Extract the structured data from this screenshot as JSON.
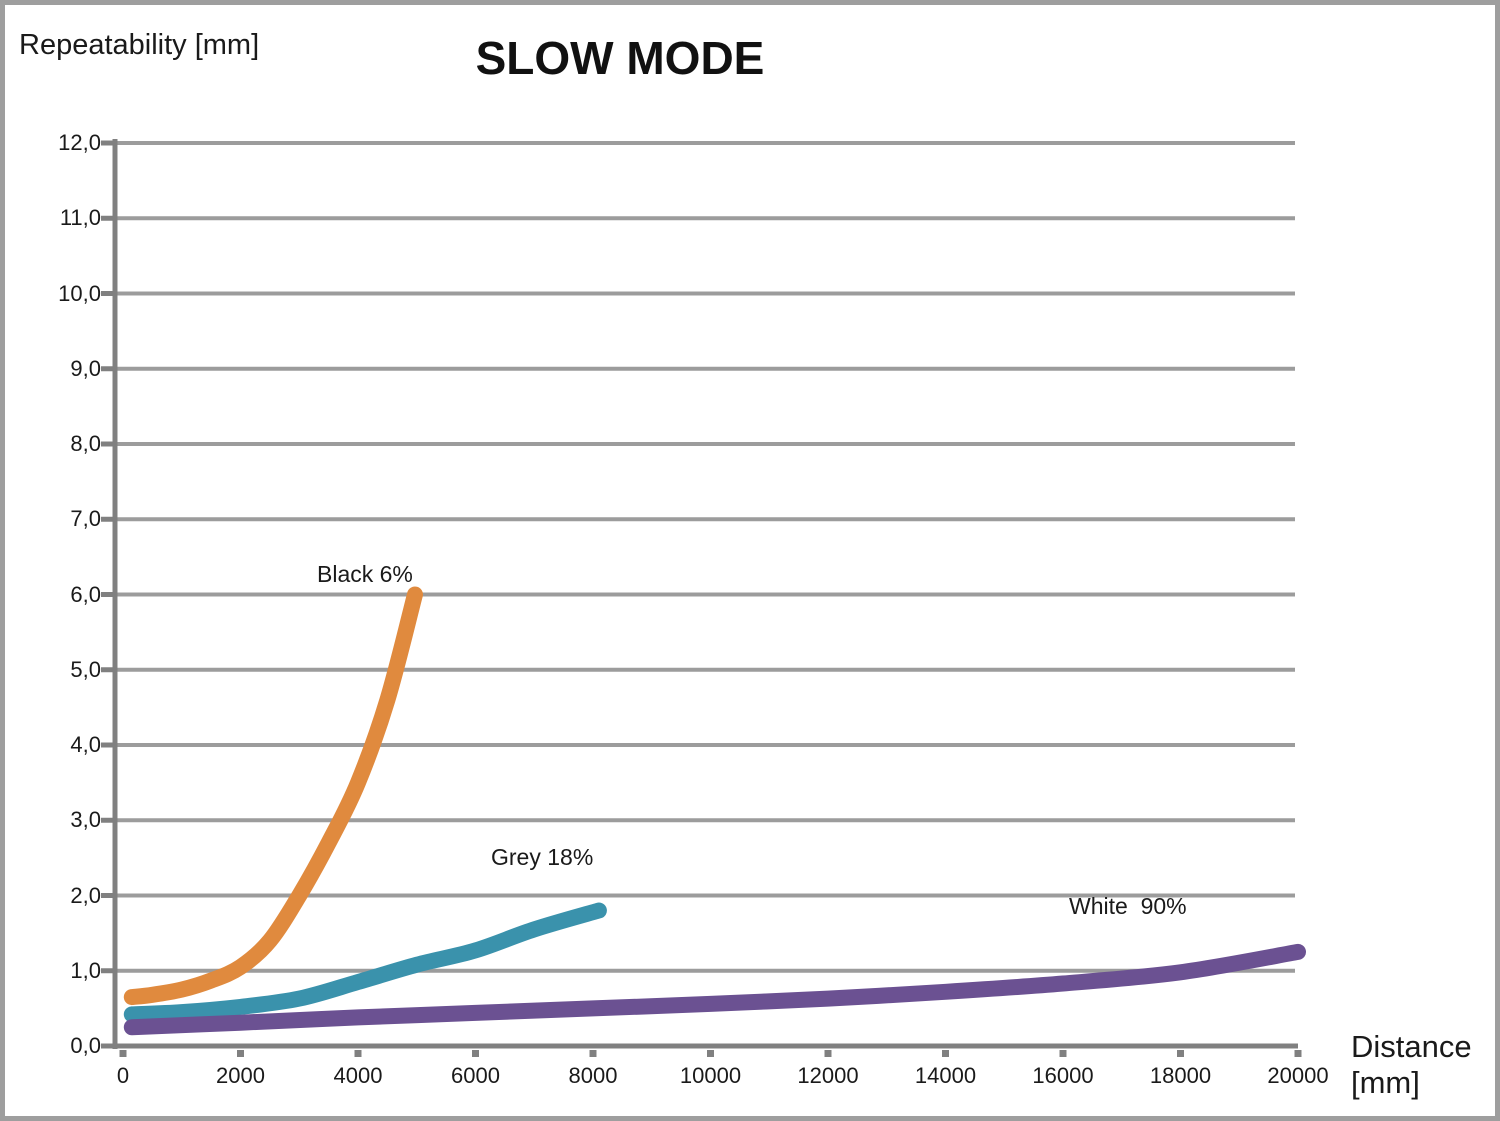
{
  "chart_data": {
    "type": "line",
    "title": "SLOW MODE",
    "ylabel": "Repeatability [mm]",
    "xlabel": "Distance [mm]",
    "xlabel_lines": {
      "0": "Distance",
      "1": "[mm]"
    },
    "xlim": [
      0,
      20000
    ],
    "ylim": [
      0,
      12
    ],
    "x_ticks": [
      0,
      2000,
      4000,
      6000,
      8000,
      10000,
      12000,
      14000,
      16000,
      18000,
      20000
    ],
    "x_tick_labels": [
      "0",
      "2000",
      "4000",
      "6000",
      "8000",
      "10000",
      "12000",
      "14000",
      "16000",
      "18000",
      "20000"
    ],
    "y_ticks": [
      0,
      1,
      2,
      3,
      4,
      5,
      6,
      7,
      8,
      9,
      10,
      11,
      12
    ],
    "y_tick_labels": [
      "0,0",
      "1,0",
      "2,0",
      "3,0",
      "4,0",
      "5,0",
      "6,0",
      "7,0",
      "8,0",
      "9,0",
      "10,0",
      "11,0",
      "12,0"
    ],
    "grid": "horizontal-only",
    "legend_position": "inline-labels",
    "colors": {
      "axis": "#808080",
      "grid": "#9c9c9c",
      "text": "#1a1a1a",
      "frame": "#9e9e9e",
      "black6": "#e08a3e",
      "grey18": "#3a92ac",
      "white90": "#6b5192"
    },
    "series": [
      {
        "name": "black-6pct",
        "label": "Black 6%",
        "color": "#e08a3e",
        "points": [
          [
            150,
            0.65
          ],
          [
            500,
            0.68
          ],
          [
            1000,
            0.75
          ],
          [
            1500,
            0.87
          ],
          [
            2000,
            1.05
          ],
          [
            2500,
            1.4
          ],
          [
            3000,
            2.0
          ],
          [
            3500,
            2.7
          ],
          [
            4000,
            3.5
          ],
          [
            4500,
            4.6
          ],
          [
            4970,
            6.0
          ]
        ]
      },
      {
        "name": "grey-18pct",
        "label": "Grey 18%",
        "color": "#3a92ac",
        "points": [
          [
            150,
            0.42
          ],
          [
            1000,
            0.45
          ],
          [
            2000,
            0.52
          ],
          [
            3000,
            0.63
          ],
          [
            4000,
            0.85
          ],
          [
            5000,
            1.08
          ],
          [
            6000,
            1.27
          ],
          [
            7000,
            1.55
          ],
          [
            8100,
            1.8
          ]
        ]
      },
      {
        "name": "white-90pct",
        "label": "White  90%",
        "color": "#6b5192",
        "points": [
          [
            150,
            0.25
          ],
          [
            2000,
            0.31
          ],
          [
            4000,
            0.38
          ],
          [
            6000,
            0.44
          ],
          [
            8000,
            0.5
          ],
          [
            10000,
            0.56
          ],
          [
            12000,
            0.63
          ],
          [
            14000,
            0.72
          ],
          [
            16000,
            0.83
          ],
          [
            18000,
            0.98
          ],
          [
            20000,
            1.25
          ]
        ]
      }
    ]
  }
}
